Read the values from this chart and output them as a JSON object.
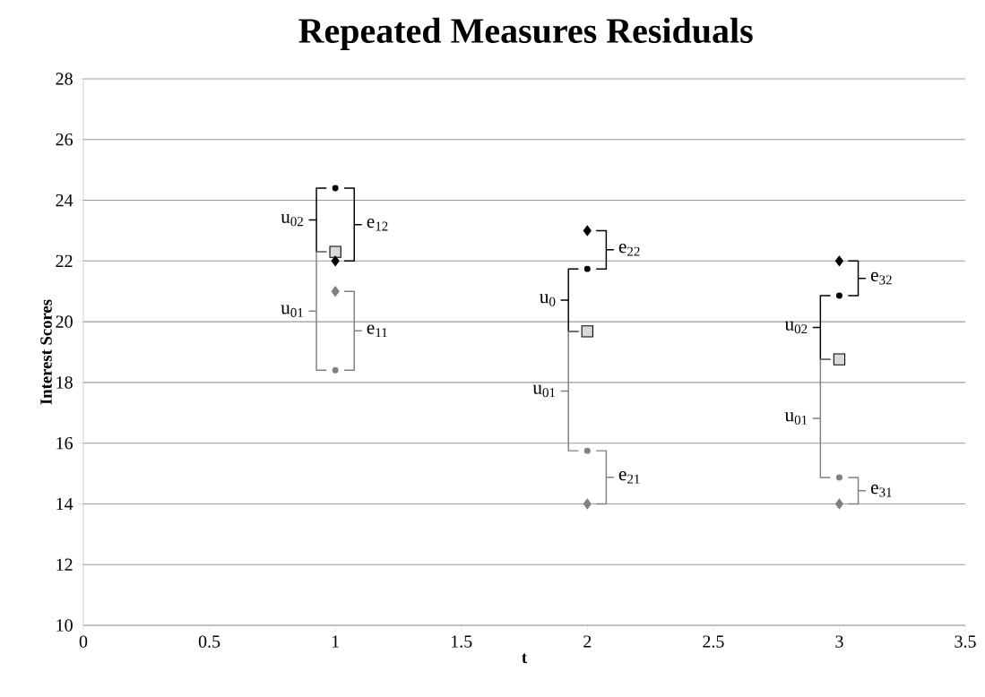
{
  "chart_data": {
    "type": "scatter",
    "title": "Repeated Measures Residuals",
    "xlabel": "t",
    "ylabel": "Interest Scores",
    "x": [
      1,
      2,
      3
    ],
    "series": [
      {
        "color": "#d9d9d9",
        "marker": "square",
        "values": [
          22.3,
          19.68,
          18.76
        ]
      },
      {
        "color": "#000000",
        "marker": "diamond",
        "values": [
          22.0,
          23.0,
          22.0
        ]
      },
      {
        "color": "#000000",
        "marker": "circle",
        "values": [
          24.4,
          21.74,
          20.86
        ]
      },
      {
        "color": "#808080",
        "marker": "diamond",
        "values": [
          21.0,
          14.0,
          14.0
        ]
      },
      {
        "color": "#808080",
        "marker": "circle",
        "values": [
          18.4,
          15.75,
          14.87
        ]
      }
    ],
    "xlim": [
      0,
      3.5
    ],
    "xticks": [
      0,
      0.5,
      1,
      1.5,
      2,
      2.5,
      3,
      3.5
    ],
    "ylim": [
      10,
      28
    ],
    "yticks": [
      10,
      12,
      14,
      16,
      18,
      20,
      22,
      24,
      26,
      28
    ],
    "grid": "y",
    "annotations": [
      "u$_{02}$",
      "e$_{12}$",
      "u$_{01}$",
      "e$_{11}$",
      "u$_{0}$",
      "e$_{22}$",
      "u$_{01}$",
      "e$_{21}$",
      "u$_{02}$",
      "e$_{32}$",
      "u$_{01}$",
      "e$_{31}$"
    ]
  }
}
